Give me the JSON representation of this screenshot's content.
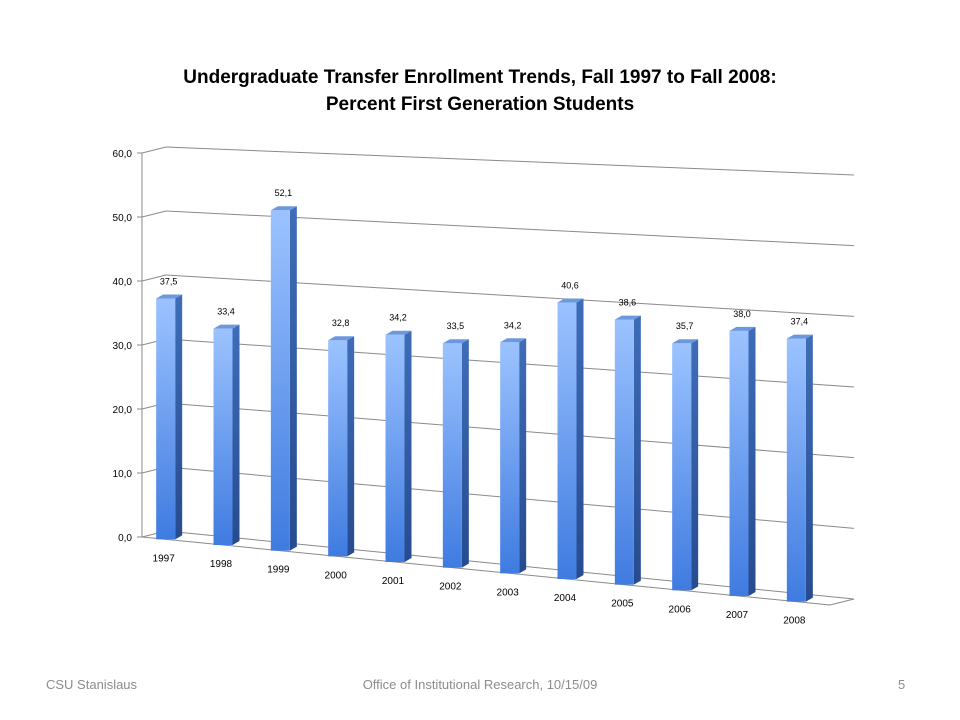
{
  "chart_data": {
    "type": "bar",
    "title_line1": "Undergraduate Transfer Enrollment Trends, Fall 1997 to Fall 2008:",
    "title_line2": "Percent First Generation Students",
    "categories": [
      "1997",
      "1998",
      "1999",
      "2000",
      "2001",
      "2002",
      "2003",
      "2004",
      "2005",
      "2006",
      "2007",
      "2008"
    ],
    "values": [
      37.5,
      33.4,
      52.1,
      32.8,
      34.2,
      33.5,
      34.2,
      40.6,
      38.6,
      35.7,
      38.0,
      37.4
    ],
    "data_labels": [
      "37,5",
      "33,4",
      "52,1",
      "32,8",
      "34,2",
      "33,5",
      "34,2",
      "40,6",
      "38,6",
      "35,7",
      "38,0",
      "37,4"
    ],
    "ytick_labels": [
      "0,0",
      "10,0",
      "20,0",
      "30,0",
      "40,0",
      "50,0",
      "60,0"
    ],
    "ylim": [
      0,
      60
    ],
    "grid": true,
    "legend": "none",
    "bar_color": "#4f81d1"
  },
  "footer": {
    "left": "CSU Stanislaus",
    "center": "Office of Institutional Research, 10/15/09",
    "page": "5"
  }
}
